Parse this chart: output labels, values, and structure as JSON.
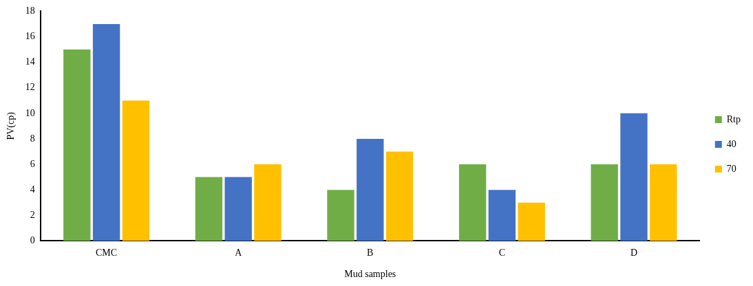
{
  "chart_data": {
    "type": "bar",
    "xlabel": "Mud samples",
    "ylabel": "PV(cp)",
    "categories": [
      "CMC",
      "A",
      "B",
      "C",
      "D"
    ],
    "series": [
      {
        "name": "Rtp",
        "color": "#70ad47",
        "values": [
          15,
          5,
          4,
          6,
          6
        ]
      },
      {
        "name": "40",
        "color": "#4472c4",
        "values": [
          17,
          5,
          8,
          4,
          10
        ]
      },
      {
        "name": "70",
        "color": "#ffc000",
        "values": [
          11,
          6,
          7,
          3,
          6
        ]
      }
    ],
    "ylim": [
      0,
      18
    ],
    "yticks": [
      0,
      2,
      4,
      6,
      8,
      10,
      12,
      14,
      16,
      18
    ],
    "grid": false,
    "legend": "right"
  }
}
